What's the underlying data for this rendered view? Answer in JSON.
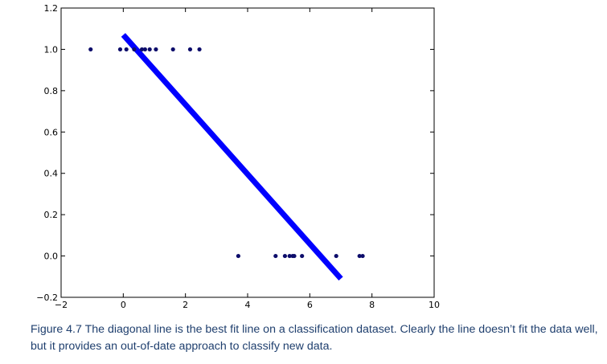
{
  "chart_data": {
    "type": "scatter",
    "title": "",
    "xlabel": "",
    "ylabel": "",
    "xlim": [
      -2,
      10
    ],
    "ylim": [
      -0.2,
      1.2
    ],
    "xticks": [
      "−2",
      "0",
      "2",
      "4",
      "6",
      "8",
      "10"
    ],
    "xtick_values": [
      -2,
      0,
      2,
      4,
      6,
      8,
      10
    ],
    "yticks": [
      "−0.2",
      "0.0",
      "0.2",
      "0.4",
      "0.6",
      "0.8",
      "1.0",
      "1.2"
    ],
    "ytick_values": [
      -0.2,
      0.0,
      0.2,
      0.4,
      0.6,
      0.8,
      1.0,
      1.2
    ],
    "grid": false,
    "points": [
      {
        "x": -1.05,
        "y": 1
      },
      {
        "x": -0.1,
        "y": 1
      },
      {
        "x": 0.1,
        "y": 1
      },
      {
        "x": 0.35,
        "y": 1
      },
      {
        "x": 0.6,
        "y": 1
      },
      {
        "x": 0.7,
        "y": 1
      },
      {
        "x": 0.85,
        "y": 1
      },
      {
        "x": 1.05,
        "y": 1
      },
      {
        "x": 1.6,
        "y": 1
      },
      {
        "x": 2.15,
        "y": 1
      },
      {
        "x": 2.45,
        "y": 1
      },
      {
        "x": 3.7,
        "y": 0
      },
      {
        "x": 4.9,
        "y": 0
      },
      {
        "x": 5.2,
        "y": 0
      },
      {
        "x": 5.35,
        "y": 0
      },
      {
        "x": 5.45,
        "y": 0
      },
      {
        "x": 5.5,
        "y": 0
      },
      {
        "x": 5.75,
        "y": 0
      },
      {
        "x": 6.85,
        "y": 0
      },
      {
        "x": 7.6,
        "y": 0
      },
      {
        "x": 7.7,
        "y": 0
      }
    ],
    "fit_line": {
      "x": [
        0,
        7
      ],
      "y": [
        1.07,
        -0.11
      ]
    },
    "colors": {
      "points": "#0d0d6b",
      "fit_line": "#0000ff",
      "axes": "#000000"
    }
  },
  "caption": "Figure 4.7 The diagonal line is the best fit line on a classification dataset. Clearly the line doesn’t fit the data well, but it provides an out-of-date approach to classify new data."
}
